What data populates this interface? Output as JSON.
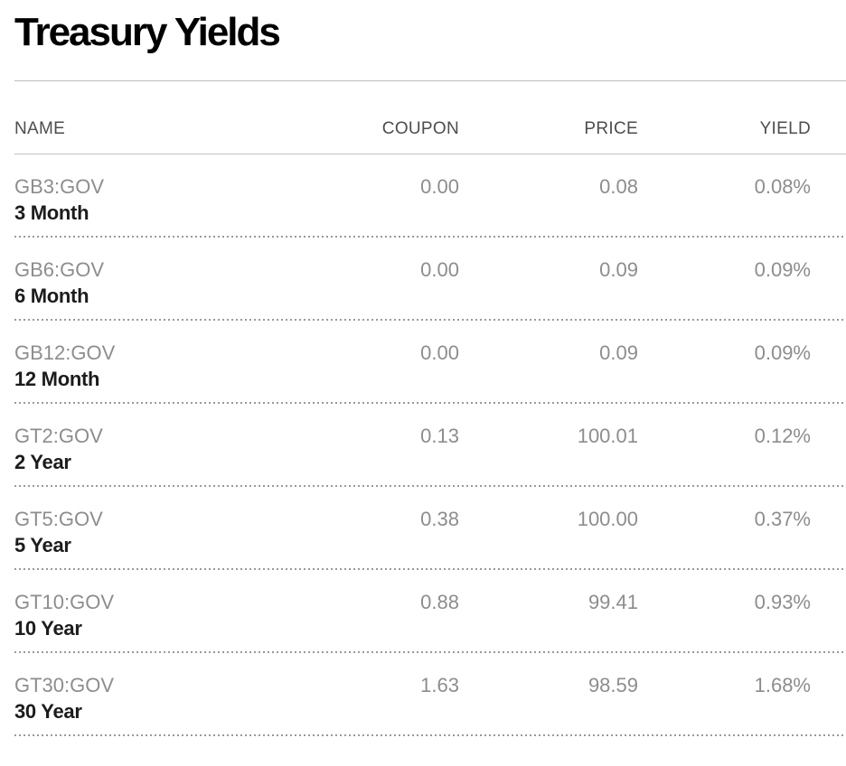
{
  "page": {
    "title": "Treasury Yields"
  },
  "table": {
    "columns": [
      "NAME",
      "COUPON",
      "PRICE",
      "YIELD"
    ],
    "rows": [
      {
        "ticker": "GB3:GOV",
        "term": "3 Month",
        "coupon": "0.00",
        "price": "0.08",
        "yield": "0.08%"
      },
      {
        "ticker": "GB6:GOV",
        "term": "6 Month",
        "coupon": "0.00",
        "price": "0.09",
        "yield": "0.09%"
      },
      {
        "ticker": "GB12:GOV",
        "term": "12 Month",
        "coupon": "0.00",
        "price": "0.09",
        "yield": "0.09%"
      },
      {
        "ticker": "GT2:GOV",
        "term": "2 Year",
        "coupon": "0.13",
        "price": "100.01",
        "yield": "0.12%"
      },
      {
        "ticker": "GT5:GOV",
        "term": "5 Year",
        "coupon": "0.38",
        "price": "100.00",
        "yield": "0.37%"
      },
      {
        "ticker": "GT10:GOV",
        "term": "10 Year",
        "coupon": "0.88",
        "price": "99.41",
        "yield": "0.93%"
      },
      {
        "ticker": "GT30:GOV",
        "term": "30 Year",
        "coupon": "1.63",
        "price": "98.59",
        "yield": "1.68%"
      }
    ]
  },
  "colors": {
    "title_text": "#000000",
    "header_text": "#4d4d4d",
    "muted_text": "#8d8d8d",
    "strong_text": "#1c1c1c",
    "solid_rule": "#bcbcbc",
    "dotted_rule": "#9a9a9a",
    "background": "#ffffff"
  }
}
